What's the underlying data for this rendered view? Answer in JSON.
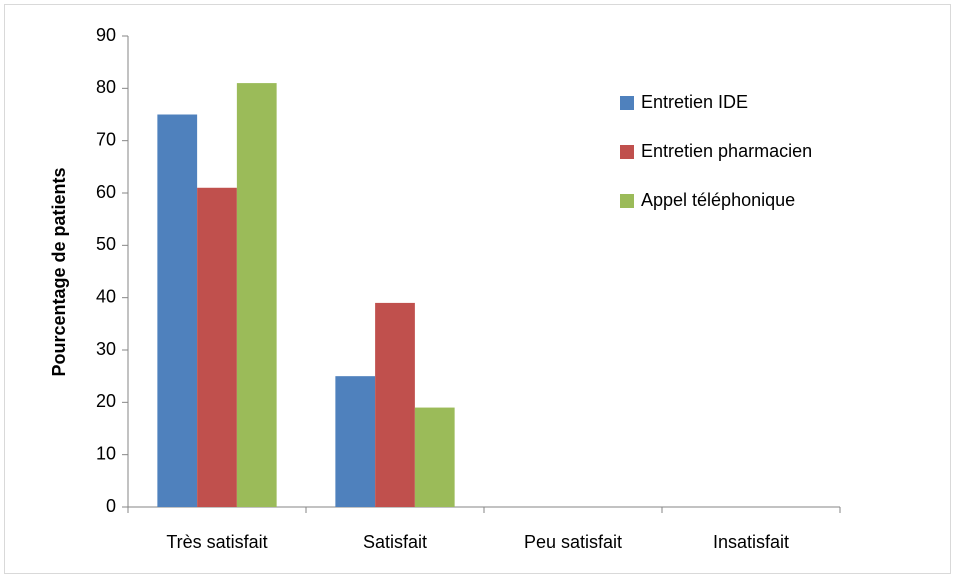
{
  "chart_data": {
    "type": "bar",
    "categories": [
      "Très satisfait",
      "Satisfait",
      "Peu satisfait",
      "Insatisfait"
    ],
    "series": [
      {
        "name": "Entretien IDE",
        "color": "#4f81bd",
        "values": [
          75,
          25,
          0,
          0
        ]
      },
      {
        "name": "Entretien pharmacien",
        "color": "#c0504d",
        "values": [
          61,
          39,
          0,
          0
        ]
      },
      {
        "name": "Appel téléphonique",
        "color": "#9bbb59",
        "values": [
          81,
          19,
          0,
          0
        ]
      }
    ],
    "y_label": "Pourcentage de patients",
    "ylim": [
      0,
      90
    ],
    "yticks": [
      0,
      10,
      20,
      30,
      40,
      50,
      60,
      70,
      80,
      90
    ],
    "grid": false,
    "legend": "right"
  }
}
